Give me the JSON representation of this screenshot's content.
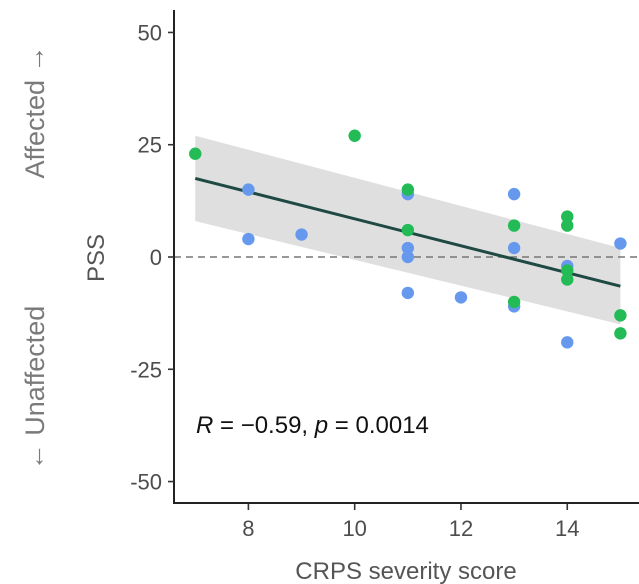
{
  "chart_data": {
    "type": "scatter",
    "title": "",
    "xlabel": "CRPS severity score",
    "ylabel": "PSS",
    "xlim": [
      6.6,
      15.35
    ],
    "ylim": [
      -55,
      55
    ],
    "xticks": [
      8,
      10,
      12,
      14
    ],
    "yticks": [
      -50,
      -25,
      0,
      25,
      50
    ],
    "x_tick_labels": [
      "8",
      "10",
      "12",
      "14"
    ],
    "y_tick_labels": [
      "-50",
      "-25",
      "0",
      "25",
      "50"
    ],
    "grid": false,
    "reference_line": {
      "y": 0,
      "style": "dashed"
    },
    "regression": {
      "x": [
        7,
        15
      ],
      "y": [
        17.5,
        -6.5
      ],
      "ci_lower": [
        8,
        -15
      ],
      "ci_upper": [
        27,
        2
      ]
    },
    "series": [
      {
        "color": "#6699ee",
        "points": [
          {
            "x": 8,
            "y": 15
          },
          {
            "x": 8,
            "y": 4
          },
          {
            "x": 9,
            "y": 5
          },
          {
            "x": 11,
            "y": 14
          },
          {
            "x": 11,
            "y": 2
          },
          {
            "x": 11,
            "y": 0
          },
          {
            "x": 11,
            "y": -8
          },
          {
            "x": 12,
            "y": -9
          },
          {
            "x": 13,
            "y": 14
          },
          {
            "x": 13,
            "y": 2
          },
          {
            "x": 13,
            "y": -11
          },
          {
            "x": 14,
            "y": -2
          },
          {
            "x": 14,
            "y": -19
          },
          {
            "x": 15,
            "y": 3
          }
        ]
      },
      {
        "color": "#22bb55",
        "points": [
          {
            "x": 7,
            "y": 23
          },
          {
            "x": 10,
            "y": 27
          },
          {
            "x": 11,
            "y": 15
          },
          {
            "x": 11,
            "y": 6
          },
          {
            "x": 13,
            "y": 7
          },
          {
            "x": 13,
            "y": -10
          },
          {
            "x": 14,
            "y": 9
          },
          {
            "x": 14,
            "y": 7
          },
          {
            "x": 14,
            "y": -3
          },
          {
            "x": 14,
            "y": -5
          },
          {
            "x": 15,
            "y": -13
          },
          {
            "x": 15,
            "y": -17
          }
        ]
      }
    ],
    "annotation": {
      "r_label": "R",
      "r_rest": " = −0.59, ",
      "p_label": "p",
      "p_rest": " = 0.0014"
    },
    "side_labels": {
      "top": "Affected →",
      "bottom": "← Unaffected"
    }
  }
}
